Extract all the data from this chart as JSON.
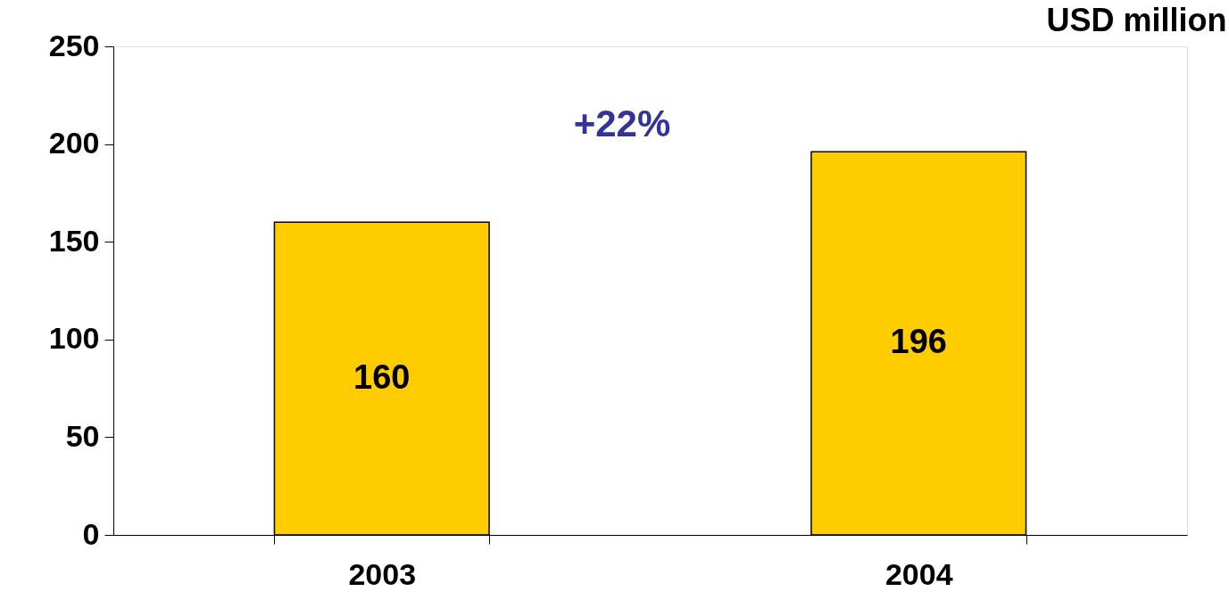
{
  "chart_data": {
    "type": "bar",
    "ylabel": "USD million",
    "categories": [
      "2003",
      "2004"
    ],
    "values": [
      160,
      196
    ],
    "color": "#ffcc00",
    "ylim": [
      0,
      250
    ],
    "yticks": [
      0,
      50,
      100,
      150,
      200,
      250
    ],
    "grid": false,
    "data_labels": true,
    "annotations": [
      "+22%"
    ]
  }
}
